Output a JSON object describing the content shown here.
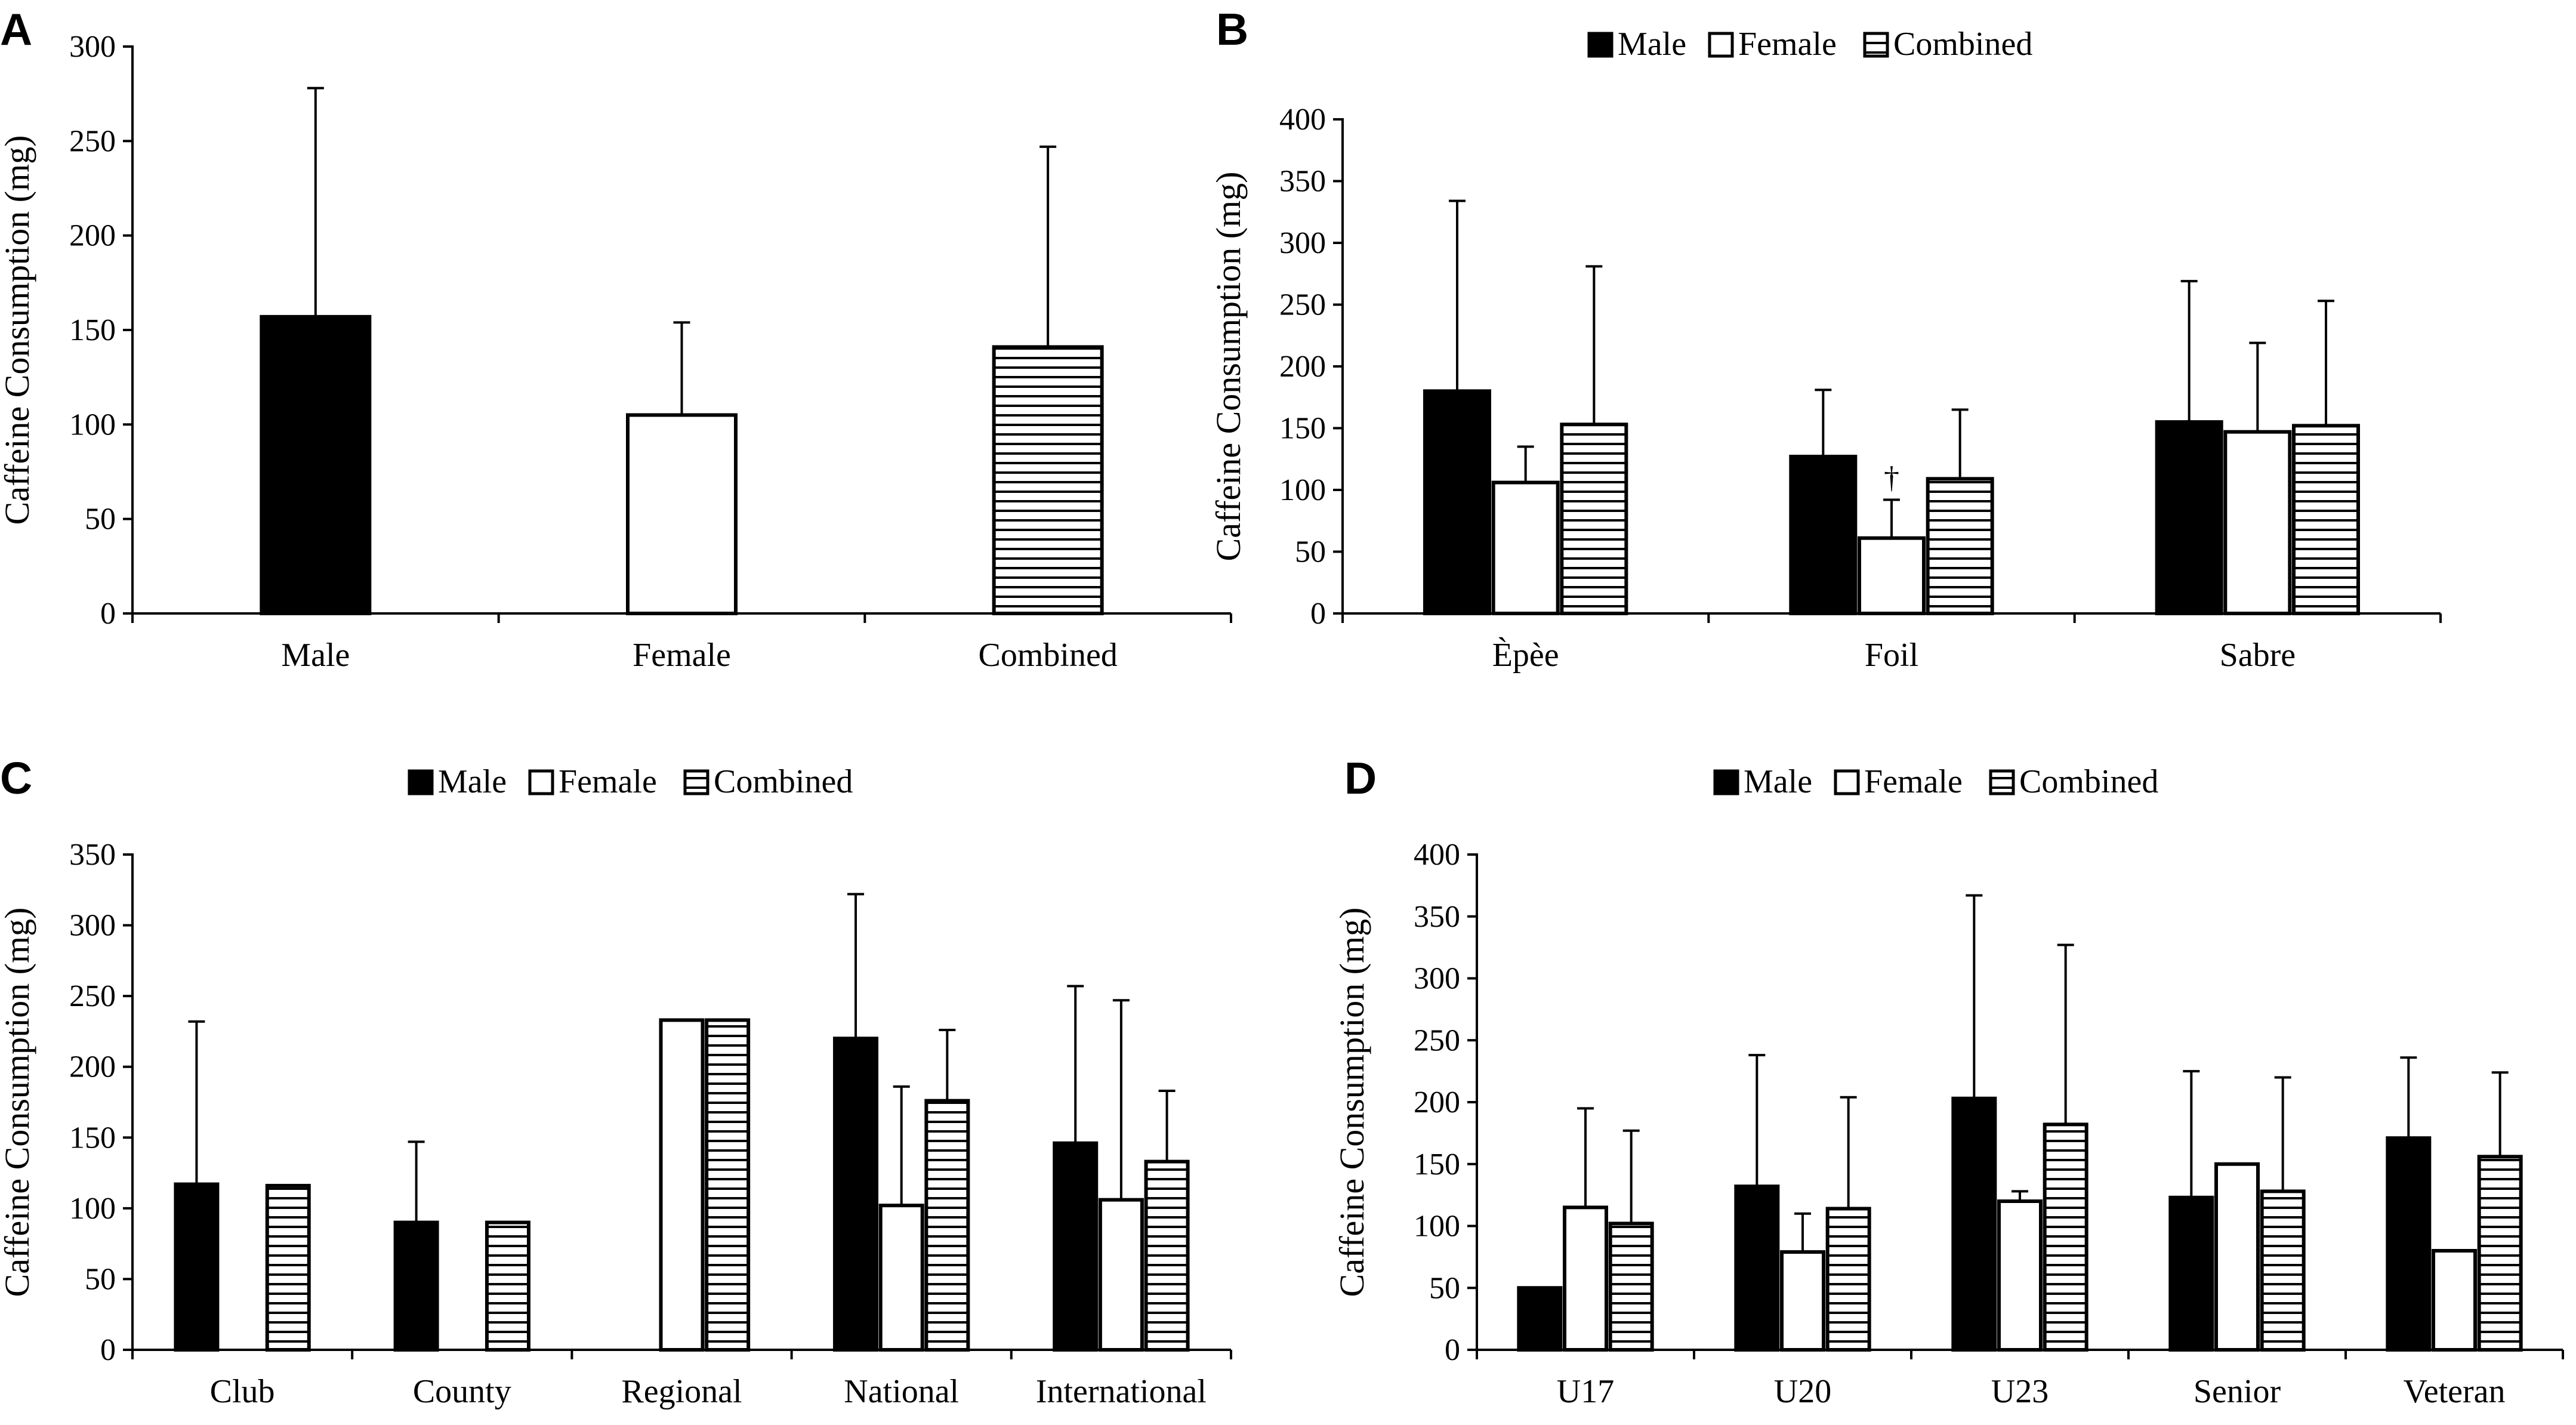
{
  "chart_data": [
    {
      "panel": "A",
      "type": "bar",
      "title": "",
      "xlabel": "",
      "ylabel": "Caffeine Consumption (mg)",
      "ylim": [
        0,
        300
      ],
      "yticks": [
        0,
        50,
        100,
        150,
        200,
        250,
        300
      ],
      "legend": null,
      "categories": [
        "Male",
        "Female",
        "Combined"
      ],
      "series": [
        {
          "name": "Caffeine",
          "values": [
            157,
            105,
            141
          ],
          "errors": [
            121,
            49,
            106
          ],
          "fills": [
            "solid",
            "white",
            "hatch"
          ]
        }
      ]
    },
    {
      "panel": "B",
      "type": "bar",
      "title": "",
      "xlabel": "",
      "ylabel": "Caffeine Consumption (mg)",
      "ylim": [
        0,
        400
      ],
      "yticks": [
        0,
        50,
        100,
        150,
        200,
        250,
        300,
        350,
        400
      ],
      "legend": "top-center",
      "categories": [
        "Èpèe",
        "Foil",
        "Sabre"
      ],
      "series": [
        {
          "name": "Male",
          "fill": "solid",
          "values": [
            180,
            127,
            155
          ],
          "errors": [
            154,
            54,
            114
          ]
        },
        {
          "name": "Female",
          "fill": "white",
          "values": [
            106,
            61,
            147
          ],
          "errors": [
            29,
            31,
            72
          ]
        },
        {
          "name": "Combined",
          "fill": "hatch",
          "values": [
            153,
            109,
            152
          ],
          "errors": [
            128,
            56,
            101
          ]
        }
      ],
      "annotations": [
        {
          "category": "Foil",
          "series": "Female",
          "text": "†"
        }
      ]
    },
    {
      "panel": "C",
      "type": "bar",
      "title": "",
      "xlabel": "",
      "ylabel": "Caffeine Consumption (mg)",
      "ylim": [
        0,
        350
      ],
      "yticks": [
        0,
        50,
        100,
        150,
        200,
        250,
        300,
        350
      ],
      "legend": "top-center",
      "categories": [
        "Club",
        "County",
        "Regional",
        "National",
        "International"
      ],
      "series": [
        {
          "name": "Male",
          "fill": "solid",
          "values": [
            117,
            90,
            null,
            220,
            146
          ],
          "errors": [
            115,
            57,
            null,
            102,
            111
          ]
        },
        {
          "name": "Female",
          "fill": "white",
          "values": [
            null,
            null,
            233,
            102,
            106
          ],
          "errors": [
            null,
            null,
            0,
            84,
            141
          ]
        },
        {
          "name": "Combined",
          "fill": "hatch",
          "values": [
            116,
            90,
            233,
            176,
            133
          ],
          "errors": [
            0,
            0,
            0,
            50,
            50
          ]
        }
      ]
    },
    {
      "panel": "D",
      "type": "bar",
      "title": "",
      "xlabel": "",
      "ylabel": "Caffeine Consumption (mg)",
      "ylim": [
        0,
        400
      ],
      "yticks": [
        0,
        50,
        100,
        150,
        200,
        250,
        300,
        350,
        400
      ],
      "legend": "top-center",
      "categories": [
        "U17",
        "U20",
        "U23",
        "Senior",
        "Veteran"
      ],
      "series": [
        {
          "name": "Male",
          "fill": "solid",
          "values": [
            50,
            132,
            203,
            123,
            171
          ],
          "errors": [
            0,
            106,
            164,
            102,
            65
          ]
        },
        {
          "name": "Female",
          "fill": "white",
          "values": [
            115,
            79,
            120,
            150,
            80
          ],
          "errors": [
            80,
            31,
            8,
            0,
            0
          ]
        },
        {
          "name": "Combined",
          "fill": "hatch",
          "values": [
            102,
            114,
            182,
            128,
            156
          ],
          "errors": [
            75,
            90,
            145,
            92,
            68
          ]
        }
      ]
    }
  ]
}
